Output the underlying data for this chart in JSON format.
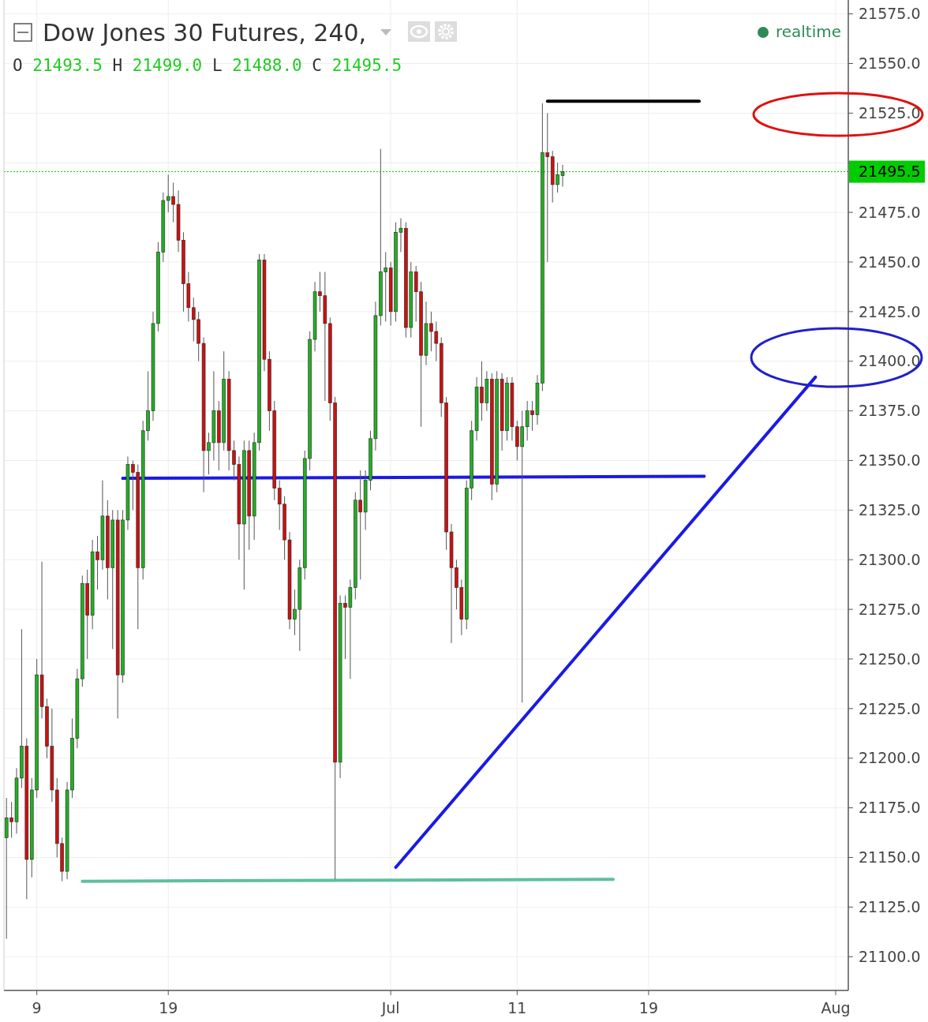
{
  "chart_data": {
    "type": "candlestick",
    "title": "Dow Jones 30 Futures, 240,",
    "subtitle": "O 21493.5 H 21499.0 L 21488.0 C 21495.5",
    "annotations": [
      "realtime"
    ],
    "categories": [
      null,
      null,
      null,
      null,
      null,
      null,
      "9",
      null,
      null,
      null,
      null,
      null,
      null,
      null,
      null,
      null,
      null,
      null,
      null,
      null,
      null,
      null,
      null,
      null,
      null,
      null,
      null,
      null,
      null,
      null,
      null,
      null,
      "19",
      null,
      null,
      null,
      null,
      null,
      null,
      null,
      null,
      null,
      null,
      null,
      null,
      null,
      null,
      null,
      null,
      null,
      null,
      null,
      null,
      null,
      null,
      null,
      null,
      null,
      null,
      null,
      null,
      null,
      null,
      null,
      null,
      null,
      null,
      null,
      null,
      null,
      null,
      null,
      null,
      null,
      null,
      null,
      "Jul",
      null,
      null,
      null,
      null,
      null,
      null,
      null,
      null,
      null,
      null,
      null,
      null,
      null,
      null,
      null,
      null,
      null,
      null,
      null,
      null,
      null,
      null,
      null,
      null,
      "11",
      null,
      null,
      null,
      null,
      null,
      null,
      null,
      null,
      null,
      null,
      null,
      null,
      null,
      null,
      null,
      null,
      null,
      null,
      null,
      null,
      null,
      null,
      null,
      null,
      null,
      "19",
      null,
      null,
      null,
      null,
      null,
      null,
      null,
      null,
      null,
      null,
      null,
      null,
      null,
      null,
      null,
      null,
      null,
      null,
      null,
      null,
      null,
      null,
      null,
      null,
      null,
      null,
      null,
      null,
      null,
      null,
      null,
      null,
      null,
      null,
      null,
      null,
      "Aug",
      null,
      null
    ],
    "ohlc": [
      [
        21160,
        21180,
        21109,
        21170
      ],
      [
        21170,
        21178,
        21160,
        21168
      ],
      [
        21168,
        21195,
        21162,
        21190
      ],
      [
        21190,
        21265,
        21185,
        21206
      ],
      [
        21206,
        21210,
        21129,
        21149
      ],
      [
        21149,
        21190,
        21140,
        21184
      ],
      [
        21184,
        21250,
        21180,
        21242
      ],
      [
        21242,
        21299,
        21220,
        21226
      ],
      [
        21226,
        21230,
        21200,
        21206
      ],
      [
        21206,
        21225,
        21178,
        21184
      ],
      [
        21184,
        21190,
        21150,
        21157
      ],
      [
        21157,
        21160,
        21138,
        21143
      ],
      [
        21143,
        21188,
        21139,
        21184
      ],
      [
        21184,
        21220,
        21180,
        21210
      ],
      [
        21210,
        21245,
        21205,
        21240
      ],
      [
        21240,
        21292,
        21236,
        21288
      ],
      [
        21288,
        21295,
        21250,
        21272
      ],
      [
        21272,
        21310,
        21265,
        21304
      ],
      [
        21304,
        21312,
        21285,
        21300
      ],
      [
        21300,
        21340,
        21295,
        21322
      ],
      [
        21322,
        21330,
        21280,
        21296
      ],
      [
        21296,
        21325,
        21255,
        21320
      ],
      [
        21320,
        21325,
        21220,
        21242
      ],
      [
        21242,
        21325,
        21238,
        21320
      ],
      [
        21320,
        21352,
        21315,
        21348
      ],
      [
        21348,
        21350,
        21325,
        21344
      ],
      [
        21344,
        21348,
        21265,
        21296
      ],
      [
        21296,
        21370,
        21290,
        21365
      ],
      [
        21365,
        21395,
        21360,
        21375
      ],
      [
        21375,
        21425,
        21370,
        21419
      ],
      [
        21419,
        21460,
        21415,
        21455
      ],
      [
        21455,
        21485,
        21450,
        21481
      ],
      [
        21481,
        21494,
        21475,
        21483
      ],
      [
        21483,
        21490,
        21470,
        21479
      ],
      [
        21479,
        21486,
        21455,
        21461
      ],
      [
        21461,
        21465,
        21425,
        21439
      ],
      [
        21439,
        21445,
        21420,
        21427
      ],
      [
        21427,
        21432,
        21410,
        21421
      ],
      [
        21421,
        21425,
        21400,
        21409
      ],
      [
        21409,
        21412,
        21334,
        21355
      ],
      [
        21355,
        21364,
        21343,
        21359
      ],
      [
        21359,
        21395,
        21350,
        21375
      ],
      [
        21375,
        21380,
        21345,
        21359
      ],
      [
        21359,
        21405,
        21355,
        21391
      ],
      [
        21391,
        21395,
        21345,
        21355
      ],
      [
        21355,
        21360,
        21340,
        21348
      ],
      [
        21348,
        21352,
        21300,
        21318
      ],
      [
        21318,
        21360,
        21285,
        21355
      ],
      [
        21355,
        21360,
        21305,
        21322
      ],
      [
        21322,
        21364,
        21310,
        21359
      ],
      [
        21359,
        21454,
        21355,
        21451
      ],
      [
        21451,
        21454,
        21395,
        21401
      ],
      [
        21401,
        21405,
        21365,
        21375
      ],
      [
        21375,
        21380,
        21330,
        21336
      ],
      [
        21336,
        21340,
        21315,
        21328
      ],
      [
        21328,
        21332,
        21300,
        21310
      ],
      [
        21310,
        21314,
        21265,
        21270
      ],
      [
        21270,
        21285,
        21262,
        21275
      ],
      [
        21275,
        21300,
        21254,
        21296
      ],
      [
        21296,
        21355,
        21290,
        21351
      ],
      [
        21351,
        21415,
        21345,
        21411
      ],
      [
        21411,
        21440,
        21405,
        21435
      ],
      [
        21435,
        21445,
        21425,
        21433
      ],
      [
        21433,
        21445,
        21380,
        21419
      ],
      [
        21419,
        21422,
        21370,
        21379
      ],
      [
        21379,
        21382,
        21139,
        21198
      ],
      [
        21198,
        21282,
        21190,
        21278
      ],
      [
        21278,
        21282,
        21250,
        21276
      ],
      [
        21276,
        21290,
        21240,
        21286
      ],
      [
        21286,
        21334,
        21280,
        21330
      ],
      [
        21330,
        21345,
        21290,
        21324
      ],
      [
        21324,
        21345,
        21315,
        21340
      ],
      [
        21340,
        21365,
        21335,
        21361
      ],
      [
        21361,
        21430,
        21355,
        21423
      ],
      [
        21423,
        21507,
        21418,
        21445
      ],
      [
        21445,
        21455,
        21420,
        21447
      ],
      [
        21447,
        21450,
        21418,
        21425
      ],
      [
        21425,
        21470,
        21420,
        21465
      ],
      [
        21465,
        21472,
        21455,
        21467
      ],
      [
        21467,
        21470,
        21412,
        21417
      ],
      [
        21417,
        21450,
        21412,
        21445
      ],
      [
        21445,
        21448,
        21420,
        21435
      ],
      [
        21435,
        21440,
        21367,
        21403
      ],
      [
        21403,
        21430,
        21398,
        21419
      ],
      [
        21419,
        21425,
        21405,
        21415
      ],
      [
        21415,
        21420,
        21400,
        21409
      ],
      [
        21409,
        21412,
        21372,
        21379
      ],
      [
        21379,
        21382,
        21305,
        21314
      ],
      [
        21314,
        21318,
        21258,
        21296
      ],
      [
        21296,
        21300,
        21275,
        21286
      ],
      [
        21286,
        21290,
        21262,
        21270
      ],
      [
        21270,
        21340,
        21265,
        21336
      ],
      [
        21336,
        21370,
        21330,
        21365
      ],
      [
        21365,
        21392,
        21360,
        21387
      ],
      [
        21387,
        21400,
        21370,
        21379
      ],
      [
        21379,
        21395,
        21375,
        21391
      ],
      [
        21391,
        21394,
        21330,
        21338
      ],
      [
        21338,
        21395,
        21334,
        21391
      ],
      [
        21391,
        21394,
        21355,
        21365
      ],
      [
        21365,
        21392,
        21360,
        21389
      ],
      [
        21389,
        21392,
        21360,
        21367
      ],
      [
        21367,
        21370,
        21350,
        21357
      ],
      [
        21357,
        21375,
        21228,
        21367
      ],
      [
        21367,
        21380,
        21360,
        21375
      ],
      [
        21375,
        21380,
        21365,
        21373
      ],
      [
        21373,
        21393,
        21368,
        21389
      ],
      [
        21389,
        21530,
        21385,
        21505
      ],
      [
        21505,
        21525,
        21450,
        21503
      ],
      [
        21503,
        21506,
        21480,
        21489
      ],
      [
        21489,
        21500,
        21485,
        21494
      ],
      [
        21493.5,
        21499.0,
        21488.0,
        21495.5
      ],
      null,
      null,
      null,
      null,
      null,
      null,
      null,
      null,
      null,
      null,
      null,
      null,
      null,
      null,
      null,
      null,
      null,
      null,
      null,
      null,
      null,
      null,
      null,
      null,
      null,
      null,
      null,
      null,
      null,
      null,
      null,
      null,
      null,
      null,
      null,
      null,
      null,
      null,
      null,
      null,
      null,
      null,
      null,
      null,
      null,
      null,
      null,
      null,
      null,
      null,
      null,
      null,
      null,
      null,
      null,
      null
    ],
    "series": [
      {
        "type": "line",
        "color": "#1a1ae6",
        "values": [
          null,
          null,
          null,
          null,
          null,
          null,
          null,
          null,
          null,
          null,
          null,
          null,
          null,
          null,
          null,
          null,
          null,
          null,
          null,
          null,
          null,
          null,
          null,
          21341,
          null,
          null,
          null,
          null,
          null,
          null,
          null,
          null,
          null,
          null,
          null,
          null,
          null,
          null,
          null,
          null,
          null,
          null,
          null,
          null,
          null,
          null,
          null,
          null,
          null,
          null,
          null,
          null,
          null,
          null,
          null,
          null,
          null,
          null,
          null,
          null,
          null,
          null,
          null,
          null,
          null,
          null,
          null,
          null,
          null,
          null,
          null,
          null,
          null,
          null,
          null,
          null,
          null,
          null,
          null,
          null,
          null,
          null,
          null,
          null,
          null,
          null,
          null,
          null,
          null,
          null,
          null,
          null,
          null,
          null,
          null,
          null,
          null,
          null,
          null,
          null,
          null,
          null,
          null,
          null,
          null,
          null,
          null,
          null,
          null,
          null,
          null,
          null,
          null,
          null,
          null,
          null,
          null,
          null,
          null,
          null,
          null,
          null,
          null,
          null,
          null,
          null,
          null,
          null,
          null,
          null,
          null,
          null,
          null,
          null,
          null,
          null,
          null,
          null,
          21342,
          null,
          null,
          null,
          null,
          null,
          null,
          null,
          null,
          null,
          null,
          null,
          null,
          null,
          null,
          null,
          null,
          null,
          null,
          null,
          null,
          null,
          null,
          null,
          null,
          null,
          null,
          null,
          null
        ]
      },
      {
        "type": "line",
        "color": "#000000",
        "values": [
          null,
          null,
          null,
          null,
          null,
          null,
          null,
          null,
          null,
          null,
          null,
          null,
          null,
          null,
          null,
          null,
          null,
          null,
          null,
          null,
          null,
          null,
          null,
          null,
          null,
          null,
          null,
          null,
          null,
          null,
          null,
          null,
          null,
          null,
          null,
          null,
          null,
          null,
          null,
          null,
          null,
          null,
          null,
          null,
          null,
          null,
          null,
          null,
          null,
          null,
          null,
          null,
          null,
          null,
          null,
          null,
          null,
          null,
          null,
          null,
          null,
          null,
          null,
          null,
          null,
          null,
          null,
          null,
          null,
          null,
          null,
          null,
          null,
          null,
          null,
          null,
          null,
          null,
          null,
          null,
          null,
          null,
          null,
          null,
          null,
          null,
          null,
          null,
          null,
          null,
          null,
          null,
          null,
          null,
          null,
          null,
          null,
          null,
          null,
          null,
          null,
          null,
          null,
          null,
          null,
          null,
          null,
          21531,
          null,
          null,
          null,
          null,
          null,
          null,
          null,
          null,
          null,
          null,
          null,
          null,
          null,
          null,
          null,
          null,
          null,
          null,
          null,
          null,
          null,
          null,
          null,
          null,
          null,
          null,
          null,
          null,
          null,
          21531,
          null,
          null,
          null,
          null,
          null,
          null,
          null,
          null,
          null,
          null,
          null,
          null,
          null,
          null,
          null,
          null,
          null,
          null,
          null,
          null,
          null,
          null,
          null,
          null,
          null,
          null,
          null,
          null,
          null
        ]
      },
      {
        "type": "line",
        "color": "#5fbf9f",
        "values": [
          null,
          null,
          null,
          null,
          null,
          null,
          null,
          null,
          null,
          null,
          null,
          null,
          null,
          null,
          null,
          21138,
          null,
          null,
          null,
          null,
          null,
          null,
          null,
          null,
          null,
          null,
          null,
          null,
          null,
          null,
          null,
          null,
          null,
          null,
          null,
          null,
          null,
          null,
          null,
          null,
          null,
          null,
          null,
          null,
          null,
          null,
          null,
          null,
          null,
          null,
          null,
          null,
          null,
          null,
          null,
          null,
          null,
          null,
          null,
          null,
          null,
          null,
          null,
          null,
          null,
          null,
          null,
          null,
          null,
          null,
          null,
          null,
          null,
          null,
          null,
          null,
          null,
          null,
          null,
          null,
          null,
          null,
          null,
          null,
          null,
          null,
          null,
          null,
          null,
          null,
          null,
          null,
          null,
          null,
          null,
          null,
          null,
          null,
          null,
          null,
          null,
          null,
          null,
          null,
          null,
          null,
          null,
          null,
          null,
          null,
          null,
          null,
          null,
          null,
          null,
          null,
          null,
          null,
          null,
          null,
          21139,
          null,
          null,
          null,
          null,
          null,
          null,
          null,
          null,
          null,
          null,
          null,
          null,
          null,
          null,
          null,
          null,
          null,
          null,
          null,
          null,
          null,
          null,
          null,
          null,
          null,
          null,
          null,
          null,
          null,
          null,
          null,
          null,
          null,
          null,
          null,
          null,
          null,
          null,
          null,
          null,
          null,
          null,
          null,
          null,
          null,
          null
        ]
      },
      {
        "type": "line",
        "color": "#1a1ae6",
        "values": [
          null,
          null,
          null,
          null,
          null,
          null,
          null,
          null,
          null,
          null,
          null,
          null,
          null,
          null,
          null,
          null,
          null,
          null,
          null,
          null,
          null,
          null,
          null,
          null,
          null,
          null,
          null,
          null,
          null,
          null,
          null,
          null,
          null,
          null,
          null,
          null,
          null,
          null,
          null,
          null,
          null,
          null,
          null,
          null,
          null,
          null,
          null,
          null,
          null,
          null,
          null,
          null,
          null,
          null,
          null,
          null,
          null,
          null,
          null,
          null,
          null,
          null,
          null,
          null,
          null,
          null,
          null,
          null,
          null,
          null,
          null,
          null,
          null,
          null,
          null,
          null,
          null,
          21145,
          null,
          null,
          null,
          null,
          null,
          null,
          null,
          null,
          null,
          null,
          null,
          null,
          null,
          null,
          null,
          null,
          null,
          null,
          null,
          null,
          null,
          null,
          null,
          null,
          null,
          null,
          null,
          null,
          null,
          null,
          null,
          null,
          null,
          null,
          null,
          null,
          null,
          null,
          null,
          null,
          null,
          null,
          null,
          null,
          null,
          null,
          null,
          null,
          null,
          null,
          null,
          null,
          null,
          null,
          null,
          null,
          null,
          null,
          null,
          null,
          null,
          null,
          null,
          null,
          null,
          null,
          null,
          null,
          null,
          null,
          null,
          null,
          null,
          null,
          null,
          null,
          null,
          null,
          null,
          null,
          null,
          null,
          21392,
          null,
          null,
          null,
          null,
          null,
          null
        ]
      }
    ],
    "ref_lines": [
      {
        "axis": "y",
        "value": 21495.5,
        "label": "21495.5",
        "color": "#00cc00",
        "line_style": "dotted"
      }
    ],
    "ylim": [
      21083,
      21582
    ],
    "yticks": [
      {
        "value": 21100,
        "label": "21100.0"
      },
      {
        "value": 21125,
        "label": "21125.0"
      },
      {
        "value": 21150,
        "label": "21150.0"
      },
      {
        "value": 21175,
        "label": "21175.0"
      },
      {
        "value": 21200,
        "label": "21200.0"
      },
      {
        "value": 21225,
        "label": "21225.0"
      },
      {
        "value": 21250,
        "label": "21250.0"
      },
      {
        "value": 21275,
        "label": "21275.0"
      },
      {
        "value": 21300,
        "label": "21300.0"
      },
      {
        "value": 21325,
        "label": "21325.0"
      },
      {
        "value": 21350,
        "label": "21350.0"
      },
      {
        "value": 21375,
        "label": "21375.0"
      },
      {
        "value": 21400,
        "label": "21400.0"
      },
      {
        "value": 21425,
        "label": "21425.0"
      },
      {
        "value": 21450,
        "label": "21450.0"
      },
      {
        "value": 21475,
        "label": "21475.0"
      },
      {
        "value": 21500,
        "label": null
      },
      {
        "value": 21525,
        "label": "21525.0"
      },
      {
        "value": 21550,
        "label": "21550.0"
      },
      {
        "value": 21575,
        "label": "21575.0"
      }
    ],
    "grid": true,
    "line_style": "solid"
  }
}
